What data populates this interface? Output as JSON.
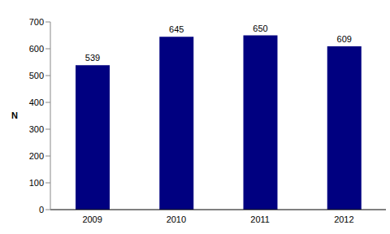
{
  "chart_data": {
    "type": "bar",
    "categories": [
      "2009",
      "2010",
      "2011",
      "2012"
    ],
    "values": [
      539,
      645,
      650,
      609
    ],
    "color": "#000080",
    "y_label": "N",
    "ylim": [
      0,
      700
    ],
    "yticks": [
      0,
      100,
      200,
      300,
      400,
      500,
      600,
      700
    ],
    "grid": false,
    "data_labels": true
  }
}
